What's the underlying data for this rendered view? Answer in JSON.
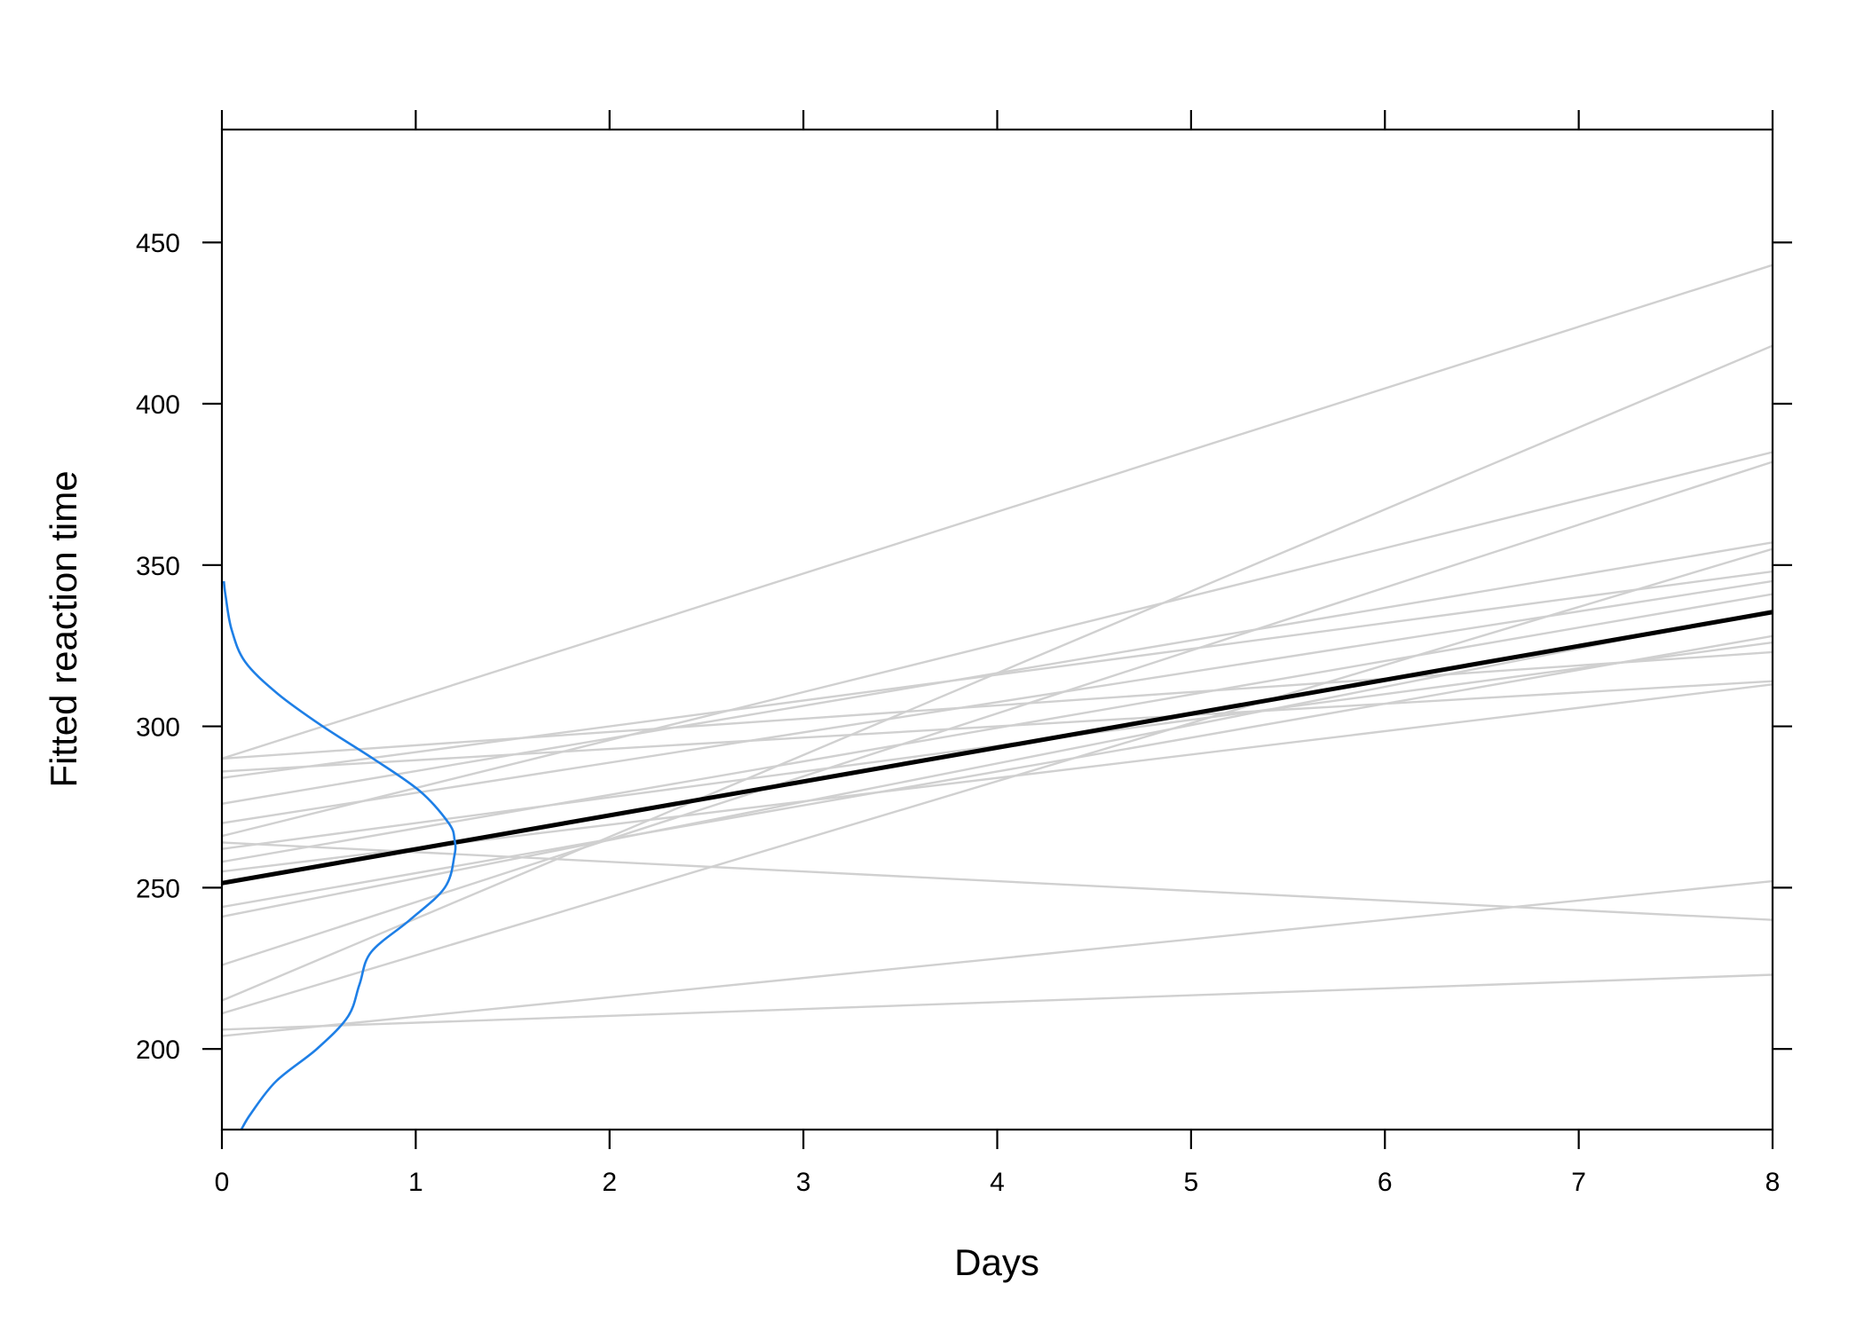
{
  "chart_data": {
    "type": "line",
    "title": "",
    "xlabel": "Days",
    "ylabel": "Fitted reaction time",
    "xlim": [
      0,
      8
    ],
    "ylim": [
      175,
      485
    ],
    "x_ticks": [
      0,
      1,
      2,
      3,
      4,
      5,
      6,
      7,
      8
    ],
    "x_tick_labels": [
      "0",
      "1",
      "2",
      "3",
      "4",
      "5",
      "6",
      "7",
      "8"
    ],
    "y_ticks": [
      200,
      250,
      300,
      350,
      400,
      450
    ],
    "y_tick_labels": [
      "200",
      "250",
      "300",
      "350",
      "400",
      "450"
    ],
    "grid": false,
    "legend": "none",
    "colors": {
      "subject_lines": "#d0d0d0",
      "population_line": "#000000",
      "density_curve": "#1e7fe6",
      "axes": "#000000"
    },
    "population_line": {
      "x": [
        0,
        8
      ],
      "y": [
        251.4,
        335.4
      ]
    },
    "subject_lines": [
      {
        "x": [
          0,
          8
        ],
        "y": [
          290,
          443
        ]
      },
      {
        "x": [
          0,
          8
        ],
        "y": [
          215,
          418
        ]
      },
      {
        "x": [
          0,
          8
        ],
        "y": [
          266,
          385
        ]
      },
      {
        "x": [
          0,
          8
        ],
        "y": [
          226,
          382
        ]
      },
      {
        "x": [
          0,
          8
        ],
        "y": [
          276,
          357
        ]
      },
      {
        "x": [
          0,
          8
        ],
        "y": [
          211,
          355
        ]
      },
      {
        "x": [
          0,
          8
        ],
        "y": [
          284,
          348
        ]
      },
      {
        "x": [
          0,
          8
        ],
        "y": [
          270,
          345
        ]
      },
      {
        "x": [
          0,
          8
        ],
        "y": [
          258,
          341
        ]
      },
      {
        "x": [
          0,
          8
        ],
        "y": [
          241,
          336
        ]
      },
      {
        "x": [
          0,
          8
        ],
        "y": [
          244,
          328
        ]
      },
      {
        "x": [
          0,
          8
        ],
        "y": [
          262,
          326
        ]
      },
      {
        "x": [
          0,
          8
        ],
        "y": [
          290,
          323
        ]
      },
      {
        "x": [
          0,
          8
        ],
        "y": [
          255,
          313
        ]
      },
      {
        "x": [
          0,
          8
        ],
        "y": [
          286,
          314
        ]
      },
      {
        "x": [
          0,
          8
        ],
        "y": [
          264,
          240
        ]
      },
      {
        "x": [
          0,
          8
        ],
        "y": [
          204,
          252
        ]
      },
      {
        "x": [
          0,
          8
        ],
        "y": [
          206,
          223
        ]
      }
    ],
    "intercept_density": {
      "reaction_time": [
        175,
        180,
        190,
        200,
        210,
        220,
        230,
        240,
        250,
        260,
        265,
        270,
        280,
        290,
        300,
        310,
        320,
        330,
        340,
        345
      ],
      "density_days": [
        0.1,
        0.15,
        0.28,
        0.49,
        0.65,
        0.71,
        0.77,
        0.97,
        1.15,
        1.2,
        1.2,
        1.17,
        1.02,
        0.78,
        0.52,
        0.29,
        0.12,
        0.05,
        0.02,
        0.01
      ]
    }
  }
}
